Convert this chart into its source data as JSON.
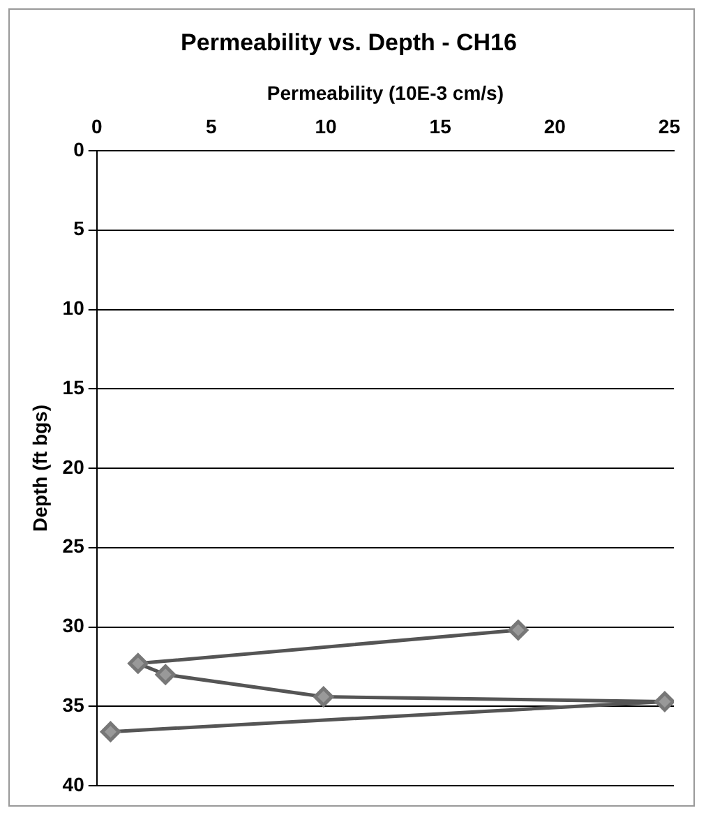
{
  "chart_data": {
    "type": "line",
    "title": "Permeability vs. Depth - CH16",
    "xlabel": "Permeability (10E-3 cm/s)",
    "ylabel": "Depth (ft bgs)",
    "x": [
      18.4,
      1.8,
      3.0,
      9.9,
      24.8,
      0.6
    ],
    "series": [
      {
        "color": "#555555",
        "values": [
          30.2,
          32.3,
          33.0,
          34.4,
          34.7,
          36.6
        ]
      }
    ],
    "xlim": [
      0,
      25.2
    ],
    "xticks": [
      0,
      5,
      10,
      15,
      20,
      25
    ],
    "ylim": [
      40,
      0
    ],
    "yticks": [
      0,
      5,
      10,
      15,
      20,
      25,
      30,
      35,
      40
    ],
    "grid": "y",
    "legend": false,
    "marker": "diamond",
    "line_style": "solid"
  }
}
